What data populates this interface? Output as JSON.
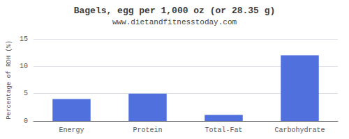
{
  "chart_data": {
    "type": "bar",
    "title": "Bagels, egg per 1,000 oz (or 28.35 g)",
    "subtitle": "www.dietandfitnesstoday.com",
    "categories": [
      "Energy",
      "Protein",
      "Total-Fat",
      "Carbohydrate"
    ],
    "values": [
      4.0,
      5.0,
      1.1,
      12.0
    ],
    "ylabel": "Percentage of RDH (%)",
    "ylim": [
      0,
      15
    ],
    "yticks": [
      0,
      5,
      10,
      15
    ],
    "grid": true
  }
}
